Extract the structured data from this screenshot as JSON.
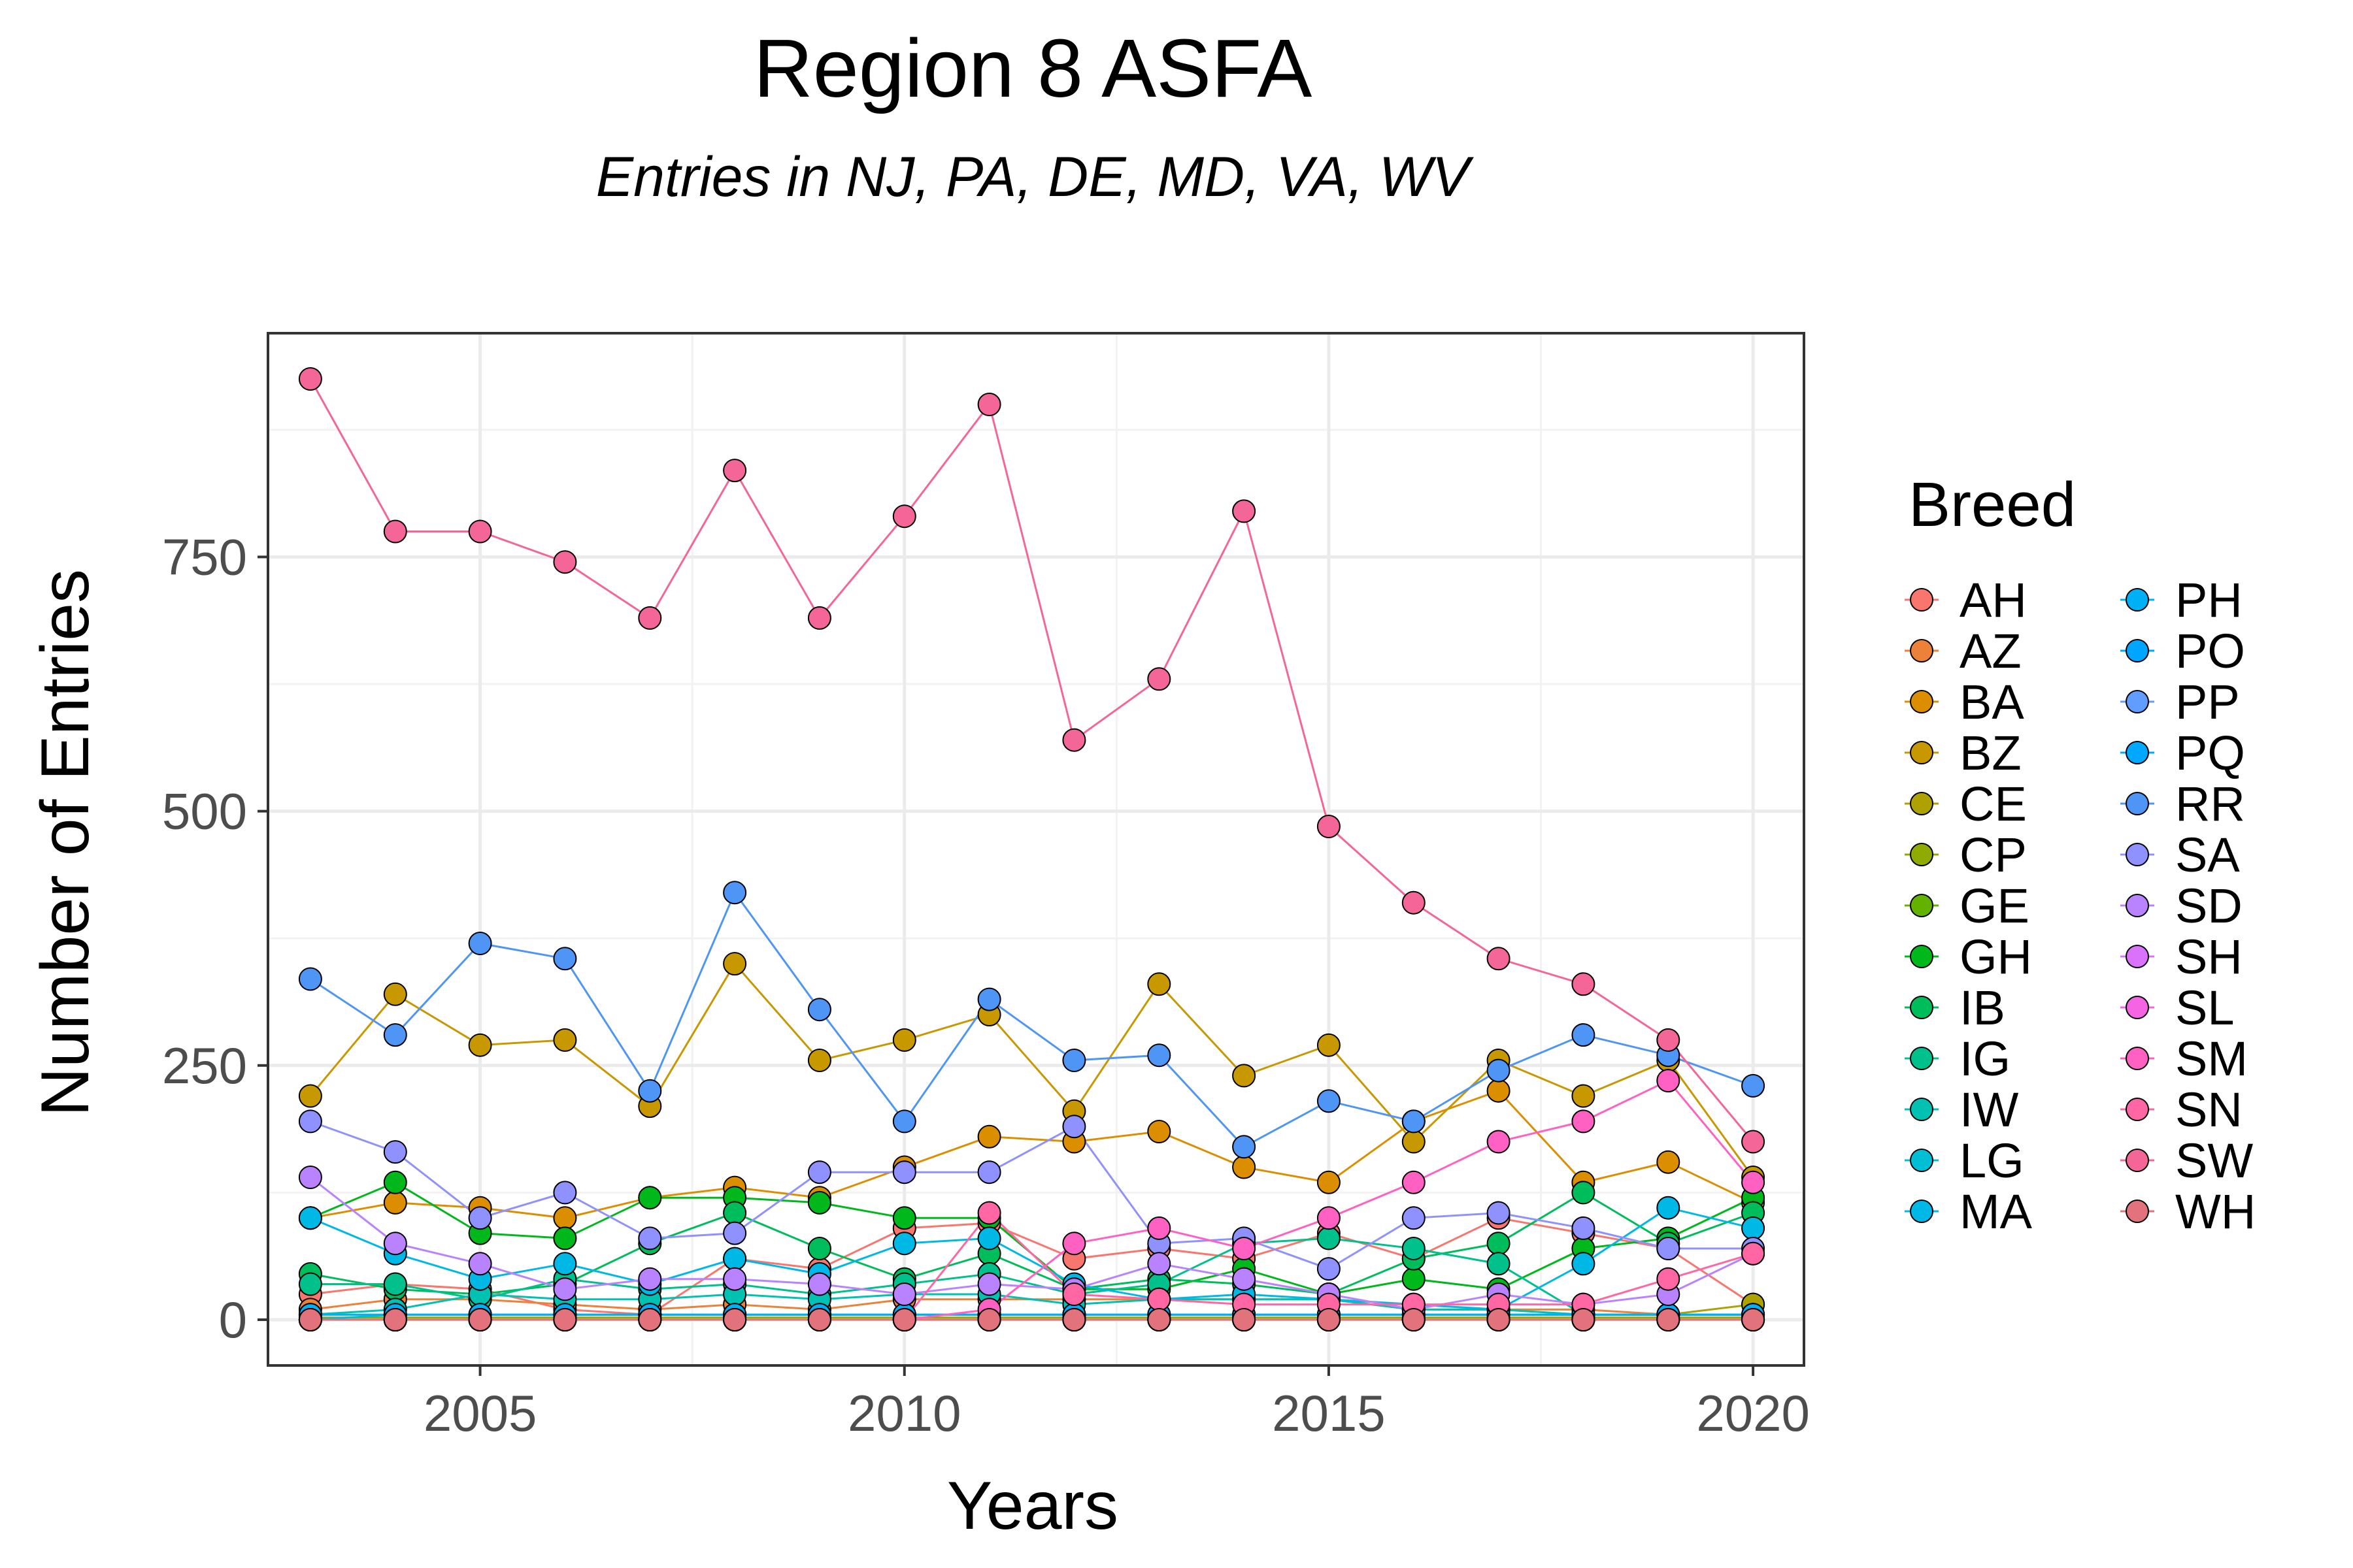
{
  "chart_data": {
    "type": "line",
    "title": "Region 8 ASFA",
    "subtitle": "Entries in NJ, PA, DE, MD, VA, WV",
    "xlabel": "Years",
    "ylabel": "Number of Entries",
    "xlim": [
      2002.5,
      2020.6
    ],
    "ylim": [
      -45,
      970
    ],
    "x_ticks": [
      2005,
      2010,
      2015,
      2020
    ],
    "y_ticks": [
      0,
      250,
      500,
      750
    ],
    "grid": true,
    "legend": {
      "title": "Breed",
      "position": "right",
      "columns": 2
    },
    "x": [
      2003,
      2004,
      2005,
      2006,
      2007,
      2008,
      2009,
      2010,
      2011,
      2012,
      2013,
      2014,
      2015,
      2016,
      2017,
      2018,
      2019,
      2020
    ],
    "series": [
      {
        "name": "AH",
        "color": "#F8766D",
        "values": [
          25,
          35,
          30,
          10,
          5,
          60,
          50,
          90,
          95,
          60,
          70,
          60,
          85,
          60,
          100,
          85,
          70,
          15
        ]
      },
      {
        "name": "AZ",
        "color": "#EC8239",
        "values": [
          10,
          20,
          20,
          15,
          10,
          15,
          10,
          20,
          20,
          20,
          20,
          20,
          20,
          10,
          10,
          10,
          5,
          5
        ]
      },
      {
        "name": "BA",
        "color": "#DB8E00",
        "values": [
          100,
          115,
          110,
          100,
          120,
          130,
          120,
          150,
          180,
          175,
          185,
          150,
          135,
          195,
          225,
          135,
          155,
          115
        ]
      },
      {
        "name": "BZ",
        "color": "#C79800",
        "values": [
          220,
          320,
          270,
          275,
          210,
          350,
          255,
          275,
          300,
          205,
          330,
          240,
          270,
          175,
          255,
          220,
          255,
          140
        ]
      },
      {
        "name": "CE",
        "color": "#AEA200",
        "values": [
          5,
          5,
          5,
          5,
          5,
          5,
          5,
          5,
          5,
          5,
          5,
          5,
          5,
          5,
          5,
          5,
          5,
          15
        ]
      },
      {
        "name": "CP",
        "color": "#8FAA00",
        "values": [
          2,
          2,
          2,
          2,
          2,
          2,
          2,
          2,
          2,
          2,
          2,
          2,
          2,
          2,
          2,
          2,
          2,
          2
        ]
      },
      {
        "name": "GE",
        "color": "#64B200",
        "values": [
          0,
          0,
          0,
          0,
          0,
          0,
          0,
          0,
          0,
          0,
          0,
          0,
          0,
          0,
          0,
          0,
          0,
          0
        ]
      },
      {
        "name": "GH",
        "color": "#00B81B",
        "values": [
          100,
          135,
          85,
          80,
          120,
          120,
          115,
          100,
          100,
          30,
          30,
          50,
          25,
          40,
          30,
          70,
          80,
          120
        ]
      },
      {
        "name": "IB",
        "color": "#00BD5C",
        "values": [
          45,
          30,
          25,
          35,
          75,
          105,
          70,
          40,
          65,
          30,
          40,
          35,
          25,
          60,
          75,
          125,
          75,
          105
        ]
      },
      {
        "name": "IG",
        "color": "#00C08B",
        "values": [
          35,
          35,
          20,
          40,
          30,
          35,
          25,
          35,
          45,
          25,
          35,
          75,
          80,
          70,
          55,
          5,
          5,
          5
        ]
      },
      {
        "name": "IW",
        "color": "#00C1B2",
        "values": [
          5,
          10,
          25,
          20,
          20,
          25,
          20,
          25,
          25,
          15,
          20,
          20,
          20,
          10,
          10,
          5,
          5,
          5
        ]
      },
      {
        "name": "LG",
        "color": "#00BFD4",
        "values": [
          0,
          5,
          5,
          5,
          5,
          5,
          5,
          5,
          5,
          5,
          5,
          5,
          5,
          5,
          5,
          5,
          5,
          5
        ]
      },
      {
        "name": "MA",
        "color": "#00B8E5",
        "values": [
          100,
          65,
          40,
          55,
          35,
          60,
          45,
          75,
          80,
          35,
          20,
          25,
          20,
          15,
          10,
          55,
          110,
          90
        ]
      },
      {
        "name": "PH",
        "color": "#00B0F6",
        "values": [
          5,
          5,
          5,
          5,
          5,
          5,
          5,
          5,
          5,
          5,
          5,
          5,
          5,
          5,
          5,
          5,
          5,
          5
        ]
      },
      {
        "name": "PO",
        "color": "#00A5FF",
        "values": [
          0,
          0,
          0,
          0,
          0,
          0,
          0,
          0,
          0,
          0,
          0,
          0,
          0,
          0,
          0,
          0,
          0,
          0
        ]
      },
      {
        "name": "PP",
        "color": "#619CFF",
        "values": [
          0,
          0,
          0,
          0,
          0,
          0,
          0,
          0,
          0,
          0,
          0,
          0,
          0,
          0,
          0,
          0,
          0,
          0
        ]
      },
      {
        "name": "PQ",
        "color": "#00A9FF",
        "values": [
          0,
          0,
          0,
          0,
          0,
          0,
          0,
          0,
          0,
          0,
          0,
          0,
          0,
          0,
          0,
          0,
          0,
          0
        ]
      },
      {
        "name": "RR",
        "color": "#4E95F5",
        "values": [
          335,
          280,
          370,
          355,
          225,
          420,
          305,
          195,
          315,
          255,
          260,
          170,
          215,
          195,
          245,
          280,
          260,
          230
        ]
      },
      {
        "name": "SA",
        "color": "#8F91FF",
        "values": [
          195,
          165,
          100,
          125,
          80,
          85,
          145,
          145,
          145,
          190,
          75,
          80,
          50,
          100,
          105,
          90,
          70,
          70
        ]
      },
      {
        "name": "SD",
        "color": "#B983FF",
        "values": [
          140,
          75,
          55,
          30,
          40,
          40,
          35,
          25,
          35,
          30,
          55,
          40,
          25,
          10,
          25,
          15,
          25,
          65
        ]
      },
      {
        "name": "SH",
        "color": "#DB72FB",
        "values": [
          0,
          0,
          0,
          0,
          0,
          0,
          0,
          0,
          0,
          0,
          0,
          0,
          0,
          0,
          0,
          0,
          0,
          0
        ]
      },
      {
        "name": "SL",
        "color": "#F564E3",
        "values": [
          0,
          0,
          0,
          0,
          0,
          0,
          0,
          0,
          0,
          0,
          0,
          0,
          0,
          0,
          0,
          0,
          0,
          0
        ]
      },
      {
        "name": "SM",
        "color": "#FF61C3",
        "values": [
          0,
          0,
          0,
          0,
          0,
          0,
          0,
          0,
          10,
          75,
          90,
          70,
          100,
          135,
          175,
          195,
          235,
          135
        ]
      },
      {
        "name": "SN",
        "color": "#FF67A4",
        "values": [
          0,
          0,
          0,
          0,
          0,
          0,
          0,
          0,
          105,
          25,
          20,
          15,
          15,
          15,
          15,
          15,
          40,
          65
        ]
      },
      {
        "name": "SW",
        "color": "#F46698",
        "values": [
          925,
          775,
          775,
          745,
          690,
          835,
          690,
          790,
          900,
          570,
          630,
          795,
          485,
          410,
          355,
          330,
          275,
          175
        ]
      },
      {
        "name": "WH",
        "color": "#E2727B",
        "values": [
          0,
          0,
          0,
          0,
          0,
          0,
          0,
          0,
          0,
          0,
          0,
          0,
          0,
          0,
          0,
          0,
          0,
          0
        ]
      }
    ]
  }
}
